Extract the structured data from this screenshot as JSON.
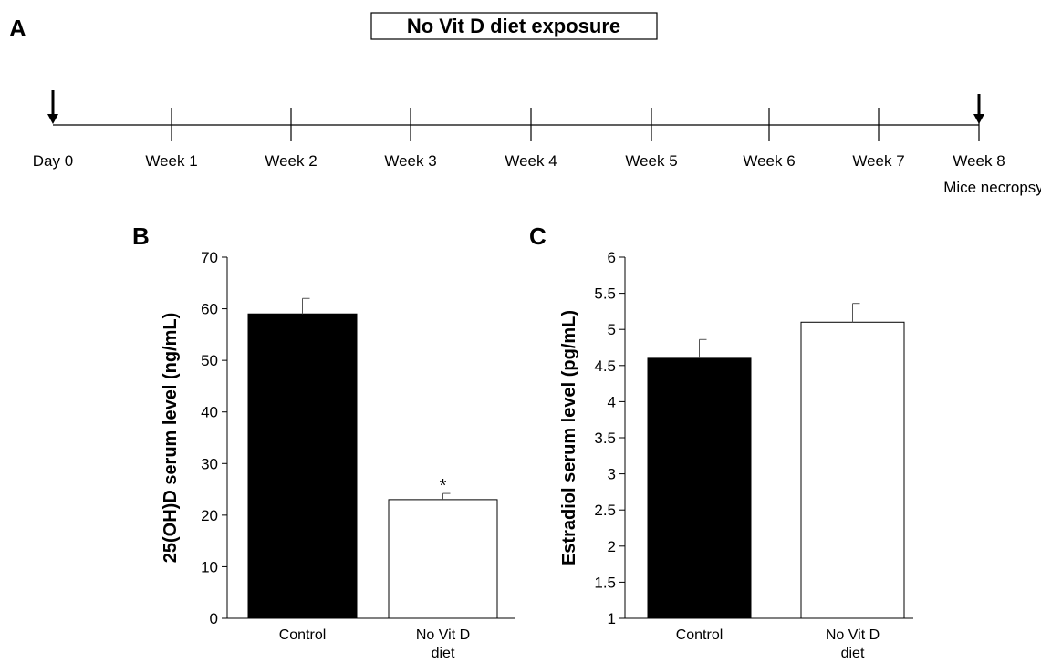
{
  "figure": {
    "panel_a_letter": "A",
    "panel_b_letter": "B",
    "panel_c_letter": "C",
    "exposure_label": "No Vit D diet exposure",
    "timeline": {
      "points": [
        "Day 0",
        "Week 1",
        "Week 2",
        "Week 3",
        "Week 4",
        "Week 5",
        "Week 6",
        "Week 7",
        "Week 8"
      ],
      "end_note": "Mice necropsy",
      "arrows_at": [
        "Day 0",
        "Week 8"
      ]
    }
  },
  "chart_data": [
    {
      "type": "bar",
      "panel": "B",
      "categories": [
        "Control",
        "No Vit D diet"
      ],
      "category_lines": [
        [
          "Control"
        ],
        [
          "No Vit D",
          "diet"
        ]
      ],
      "values": [
        59,
        23
      ],
      "errors": [
        3,
        1.2
      ],
      "bar_colors": [
        "#000000",
        "#ffffff"
      ],
      "significance": [
        "",
        "*"
      ],
      "ylabel": "25(OH)D serum level (ng/mL)",
      "ylim": [
        0,
        70
      ],
      "yticks": [
        0,
        10,
        20,
        30,
        40,
        50,
        60,
        70
      ],
      "grid": false
    },
    {
      "type": "bar",
      "panel": "C",
      "categories": [
        "Control",
        "No Vit D diet"
      ],
      "category_lines": [
        [
          "Control"
        ],
        [
          "No Vit D",
          "diet"
        ]
      ],
      "values": [
        4.6,
        5.1
      ],
      "errors": [
        0.26,
        0.26
      ],
      "bar_colors": [
        "#000000",
        "#ffffff"
      ],
      "significance": [
        "",
        ""
      ],
      "ylabel": "Estradiol serum level (pg/mL)",
      "ylim": [
        1,
        6
      ],
      "yticks": [
        1,
        1.5,
        2,
        2.5,
        3,
        3.5,
        4,
        4.5,
        5,
        5.5,
        6
      ],
      "ytick_labels": [
        "1",
        "1.5",
        "2",
        "2.5",
        "3",
        "3.5",
        "4",
        "4.5",
        "5",
        "5.5",
        "6"
      ],
      "grid": false
    }
  ]
}
